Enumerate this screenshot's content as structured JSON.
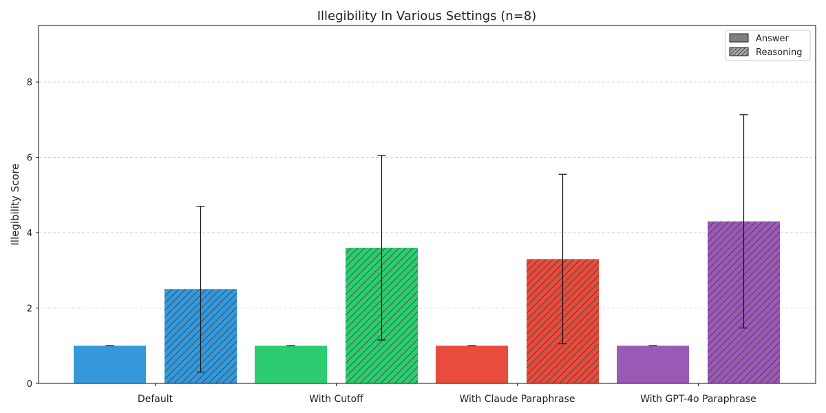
{
  "chart_data": {
    "type": "bar",
    "title": "Illegibility In Various Settings (n=8)",
    "xlabel": "",
    "ylabel": "Illegibility Score",
    "ylim": [
      0,
      9.5
    ],
    "yticks": [
      0,
      2,
      4,
      6,
      8
    ],
    "ytick_labels": [
      "0",
      "2",
      "4",
      "6",
      "8"
    ],
    "grid": "y-dashed",
    "legend_position": "top-right",
    "categories": [
      "Default",
      "With Cutoff",
      "With Claude Paraphrase",
      "With GPT-4o Paraphrase"
    ],
    "category_colors": [
      "#3498db",
      "#2ecc71",
      "#e74c3c",
      "#9b59b6"
    ],
    "series": [
      {
        "name": "Answer",
        "pattern": "solid",
        "values": [
          1.0,
          1.0,
          1.0,
          1.0
        ],
        "errors": [
          0.0,
          0.0,
          0.0,
          0.0
        ]
      },
      {
        "name": "Reasoning",
        "pattern": "hatched",
        "values": [
          2.5,
          3.6,
          3.3,
          4.3
        ],
        "errors": [
          2.2,
          2.45,
          2.25,
          2.83
        ]
      }
    ]
  }
}
